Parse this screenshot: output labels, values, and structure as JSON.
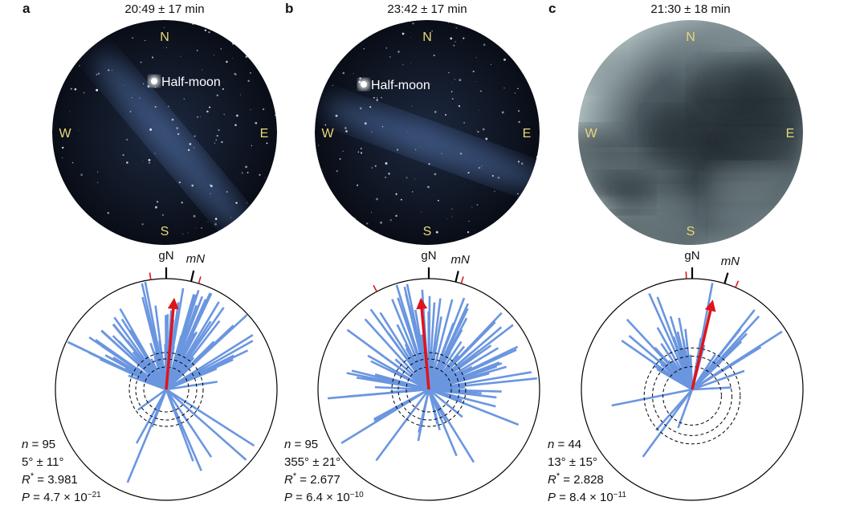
{
  "panels": [
    {
      "label": "a",
      "time": "20:49 ± 17 min",
      "compass": {
        "n": "N",
        "s": "S",
        "w": "W",
        "e": "E"
      },
      "moon": "Half-moon",
      "ticks": {
        "g": "gN",
        "m": "mN"
      },
      "mean_direction_deg": 5,
      "stats": [
        {
          "symbol": "n",
          "text": " = 95"
        },
        {
          "text": "5° ± 11°"
        },
        {
          "symbol": "R",
          "sup": "*",
          "text": " = 3.981"
        },
        {
          "symbol": "P",
          "text": " = 4.7 × 10",
          "exponent": "−21"
        }
      ]
    },
    {
      "label": "b",
      "time": "23:42 ± 17 min",
      "compass": {
        "n": "N",
        "s": "S",
        "w": "W",
        "e": "E"
      },
      "moon": "Half-moon",
      "ticks": {
        "g": "gN",
        "m": "mN"
      },
      "mean_direction_deg": 355,
      "stats": [
        {
          "symbol": "n",
          "text": " = 95"
        },
        {
          "text": "355° ± 21°"
        },
        {
          "symbol": "R",
          "sup": "*",
          "text": " = 2.677"
        },
        {
          "symbol": "P",
          "text": " = 6.4 × 10",
          "exponent": "−10"
        }
      ]
    },
    {
      "label": "c",
      "time": "21:30 ± 18 min",
      "compass": {
        "n": "N",
        "s": "S",
        "w": "W",
        "e": "E"
      },
      "ticks": {
        "g": "gN",
        "m": "mN"
      },
      "mean_direction_deg": 13,
      "stats": [
        {
          "symbol": "n",
          "text": " = 44"
        },
        {
          "text": "13° ± 15°"
        },
        {
          "symbol": "R",
          "sup": "*",
          "text": " = 2.828"
        },
        {
          "symbol": "P",
          "text": " = 8.4 × 10",
          "exponent": "−11"
        }
      ]
    }
  ]
}
